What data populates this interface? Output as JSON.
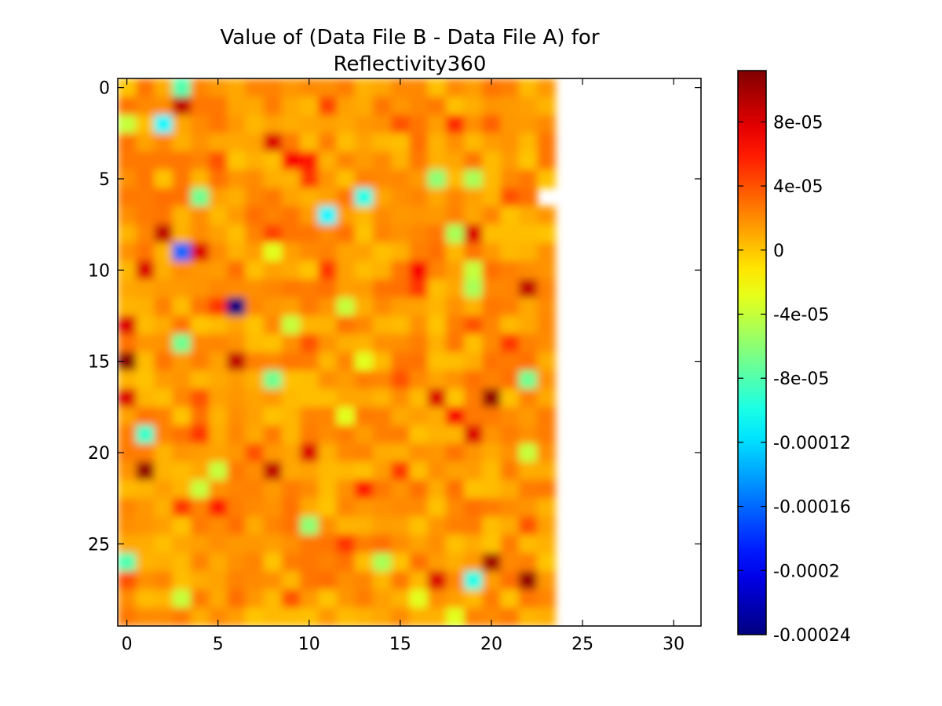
{
  "chart_data": {
    "type": "heatmap",
    "title_lines": [
      "Value of (Data File B - Data File A) for",
      "Reflectivity360"
    ],
    "xlabel": "",
    "ylabel": "",
    "x_ticks": [
      0,
      5,
      10,
      15,
      20,
      25,
      30
    ],
    "x_tick_labels": [
      "0",
      "5",
      "10",
      "15",
      "20",
      "25",
      "30"
    ],
    "y_ticks": [
      0,
      5,
      10,
      15,
      20,
      25
    ],
    "y_tick_labels": [
      "0",
      "5",
      "10",
      "15",
      "20",
      "25"
    ],
    "xlim": [
      -0.5,
      31.5
    ],
    "ylim": [
      29.5,
      -0.5
    ],
    "data_columns_with_values": [
      0,
      23
    ],
    "missing_cells": [
      [
        6,
        23
      ]
    ],
    "interpolation": "smooth",
    "colormap": "jet",
    "color_range": [
      -0.00024,
      0.000112
    ],
    "colorbar": {
      "ticks": [
        8e-05,
        4e-05,
        0,
        -4e-05,
        -8e-05,
        -0.00012,
        -0.00016,
        -0.0002,
        -0.00024
      ],
      "tick_labels": [
        "8e-05",
        "4e-05",
        "0",
        "-4e-05",
        "-8e-05",
        "-0.00012",
        "-0.00016",
        "-0.0002",
        "-0.00024"
      ]
    },
    "baseline_value": 1.5e-05,
    "anomalies": [
      {
        "row": 1,
        "col": 3,
        "value": 9e-05
      },
      {
        "row": 1,
        "col": 11,
        "value": 4.5e-05
      },
      {
        "row": 2,
        "col": 2,
        "value": -0.00011
      },
      {
        "row": 2,
        "col": 0,
        "value": -4e-05
      },
      {
        "row": 0,
        "col": 3,
        "value": -8e-05
      },
      {
        "row": 2,
        "col": 15,
        "value": 4e-05
      },
      {
        "row": 2,
        "col": 18,
        "value": 5.5e-05
      },
      {
        "row": 2,
        "col": 20,
        "value": 3.5e-05
      },
      {
        "row": 3,
        "col": 8,
        "value": 8e-05
      },
      {
        "row": 3,
        "col": 16,
        "value": 3e-05
      },
      {
        "row": 4,
        "col": 9,
        "value": 7e-05
      },
      {
        "row": 4,
        "col": 10,
        "value": 6e-05
      },
      {
        "row": 4,
        "col": 5,
        "value": 4e-05
      },
      {
        "row": 5,
        "col": 10,
        "value": 5e-05
      },
      {
        "row": 5,
        "col": 17,
        "value": -6e-05
      },
      {
        "row": 5,
        "col": 19,
        "value": -5e-05
      },
      {
        "row": 6,
        "col": 4,
        "value": -7e-05
      },
      {
        "row": 6,
        "col": 13,
        "value": -0.0001
      },
      {
        "row": 6,
        "col": 21,
        "value": 4e-05
      },
      {
        "row": 7,
        "col": 11,
        "value": -0.00011
      },
      {
        "row": 7,
        "col": 7,
        "value": 3e-05
      },
      {
        "row": 8,
        "col": 2,
        "value": 9e-05
      },
      {
        "row": 8,
        "col": 8,
        "value": 4.5e-05
      },
      {
        "row": 8,
        "col": 18,
        "value": -5e-05
      },
      {
        "row": 8,
        "col": 19,
        "value": 8e-05
      },
      {
        "row": 9,
        "col": 3,
        "value": -0.00016
      },
      {
        "row": 9,
        "col": 4,
        "value": 8e-05
      },
      {
        "row": 9,
        "col": 8,
        "value": -3e-05
      },
      {
        "row": 10,
        "col": 1,
        "value": 8e-05
      },
      {
        "row": 10,
        "col": 11,
        "value": 5e-05
      },
      {
        "row": 10,
        "col": 16,
        "value": 7e-05
      },
      {
        "row": 10,
        "col": 19,
        "value": -4e-05
      },
      {
        "row": 11,
        "col": 22,
        "value": 9e-05
      },
      {
        "row": 11,
        "col": 19,
        "value": -5e-05
      },
      {
        "row": 11,
        "col": 16,
        "value": 5e-05
      },
      {
        "row": 12,
        "col": 5,
        "value": 5e-05
      },
      {
        "row": 12,
        "col": 6,
        "value": -0.00024
      },
      {
        "row": 12,
        "col": 12,
        "value": -4e-05
      },
      {
        "row": 13,
        "col": 0,
        "value": 8e-05
      },
      {
        "row": 13,
        "col": 9,
        "value": -4e-05
      },
      {
        "row": 13,
        "col": 19,
        "value": 4e-05
      },
      {
        "row": 14,
        "col": 3,
        "value": -7e-05
      },
      {
        "row": 14,
        "col": 21,
        "value": 5e-05
      },
      {
        "row": 14,
        "col": 10,
        "value": 4e-05
      },
      {
        "row": 15,
        "col": 0,
        "value": 0.00011
      },
      {
        "row": 15,
        "col": 6,
        "value": 9e-05
      },
      {
        "row": 15,
        "col": 13,
        "value": -3e-05
      },
      {
        "row": 16,
        "col": 8,
        "value": -7e-05
      },
      {
        "row": 16,
        "col": 22,
        "value": -7e-05
      },
      {
        "row": 16,
        "col": 15,
        "value": 4e-05
      },
      {
        "row": 17,
        "col": 0,
        "value": 8e-05
      },
      {
        "row": 17,
        "col": 17,
        "value": 8e-05
      },
      {
        "row": 17,
        "col": 20,
        "value": 0.000105
      },
      {
        "row": 17,
        "col": 4,
        "value": 4e-05
      },
      {
        "row": 18,
        "col": 18,
        "value": 7e-05
      },
      {
        "row": 18,
        "col": 12,
        "value": -3e-05
      },
      {
        "row": 19,
        "col": 1,
        "value": -9e-05
      },
      {
        "row": 19,
        "col": 19,
        "value": 8e-05
      },
      {
        "row": 19,
        "col": 4,
        "value": 5e-05
      },
      {
        "row": 20,
        "col": 10,
        "value": 8e-05
      },
      {
        "row": 20,
        "col": 22,
        "value": -4e-05
      },
      {
        "row": 20,
        "col": 7,
        "value": 4e-05
      },
      {
        "row": 21,
        "col": 1,
        "value": 0.000105
      },
      {
        "row": 21,
        "col": 8,
        "value": 9e-05
      },
      {
        "row": 21,
        "col": 15,
        "value": 5e-05
      },
      {
        "row": 21,
        "col": 5,
        "value": -4e-05
      },
      {
        "row": 22,
        "col": 13,
        "value": 6e-05
      },
      {
        "row": 22,
        "col": 4,
        "value": -4e-05
      },
      {
        "row": 23,
        "col": 3,
        "value": 5e-05
      },
      {
        "row": 23,
        "col": 5,
        "value": 6e-05
      },
      {
        "row": 24,
        "col": 10,
        "value": -6e-05
      },
      {
        "row": 24,
        "col": 22,
        "value": 4e-05
      },
      {
        "row": 25,
        "col": 12,
        "value": 5e-05
      },
      {
        "row": 26,
        "col": 0,
        "value": -8e-05
      },
      {
        "row": 26,
        "col": 14,
        "value": -5e-05
      },
      {
        "row": 26,
        "col": 20,
        "value": 0.0001
      },
      {
        "row": 27,
        "col": 17,
        "value": 8e-05
      },
      {
        "row": 27,
        "col": 19,
        "value": -0.0001
      },
      {
        "row": 27,
        "col": 22,
        "value": 0.000105
      },
      {
        "row": 27,
        "col": 0,
        "value": 4e-05
      },
      {
        "row": 28,
        "col": 3,
        "value": -4e-05
      },
      {
        "row": 28,
        "col": 9,
        "value": 4e-05
      },
      {
        "row": 28,
        "col": 16,
        "value": -3e-05
      },
      {
        "row": 29,
        "col": 18,
        "value": -3e-05
      }
    ]
  }
}
